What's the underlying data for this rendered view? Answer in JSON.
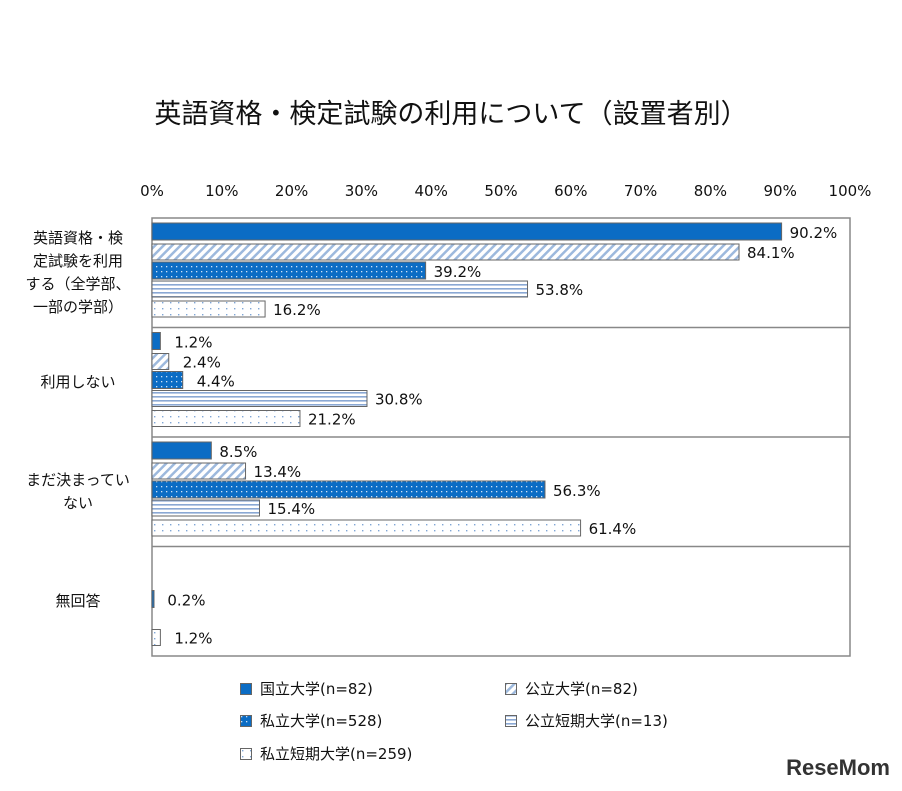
{
  "chart_data": {
    "type": "bar",
    "orientation": "horizontal",
    "title": "英語資格・検定試験の利用について（設置者別）",
    "xlim": [
      0,
      100
    ],
    "ticks": [
      "0%",
      "10%",
      "20%",
      "30%",
      "40%",
      "50%",
      "60%",
      "70%",
      "80%",
      "90%",
      "100%"
    ],
    "categories": [
      "英語資格・検定試験を利用する（全学部、一部の学部）",
      "利用しない",
      "まだ決まっていない",
      "無回答"
    ],
    "category_lines": [
      [
        "英語資格・検",
        "定試験を利用",
        "する（全学部、",
        "一部の学部）"
      ],
      [
        "利用しない"
      ],
      [
        "まだ決まってい",
        "ない"
      ],
      [
        "無回答"
      ]
    ],
    "series": [
      {
        "name": "国立大学(n=82)",
        "values": [
          90.2,
          1.2,
          8.5,
          null
        ],
        "labels": [
          "90.2%",
          "1.2%",
          "8.5%",
          ""
        ],
        "color": "#0b6cc4",
        "pattern": "solid"
      },
      {
        "name": "公立大学(n=82)",
        "values": [
          84.1,
          2.4,
          13.4,
          null
        ],
        "labels": [
          "84.1%",
          "2.4%",
          "13.4%",
          ""
        ],
        "color": "#9db9dd",
        "pattern": "diagonal"
      },
      {
        "name": "私立大学(n=528)",
        "values": [
          39.2,
          4.4,
          56.3,
          0.2
        ],
        "labels": [
          "39.2%",
          "4.4%",
          "56.3%",
          "0.2%"
        ],
        "color": "#0b6cc4",
        "pattern": "dots-dark"
      },
      {
        "name": "公立短期大学(n=13)",
        "values": [
          53.8,
          30.8,
          15.4,
          null
        ],
        "labels": [
          "53.8%",
          "30.8%",
          "15.4%",
          ""
        ],
        "color": "#8aa8d4",
        "pattern": "horizontal"
      },
      {
        "name": "私立短期大学(n=259)",
        "values": [
          16.2,
          21.2,
          61.4,
          1.2
        ],
        "labels": [
          "16.2%",
          "21.2%",
          "61.4%",
          "1.2%"
        ],
        "color": "#7fa6d6",
        "pattern": "dots-light"
      }
    ],
    "grid": false,
    "legend": "bottom"
  },
  "logo": "ReseMom"
}
